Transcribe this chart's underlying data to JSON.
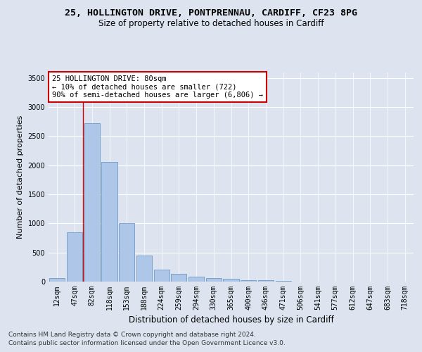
{
  "title_line1": "25, HOLLINGTON DRIVE, PONTPRENNAU, CARDIFF, CF23 8PG",
  "title_line2": "Size of property relative to detached houses in Cardiff",
  "xlabel": "Distribution of detached houses by size in Cardiff",
  "ylabel": "Number of detached properties",
  "categories": [
    "12sqm",
    "47sqm",
    "82sqm",
    "118sqm",
    "153sqm",
    "188sqm",
    "224sqm",
    "259sqm",
    "294sqm",
    "330sqm",
    "365sqm",
    "400sqm",
    "436sqm",
    "471sqm",
    "506sqm",
    "541sqm",
    "577sqm",
    "612sqm",
    "647sqm",
    "683sqm",
    "718sqm"
  ],
  "values": [
    60,
    850,
    2720,
    2060,
    1000,
    450,
    210,
    135,
    80,
    60,
    45,
    30,
    20,
    10,
    5,
    3,
    2,
    1,
    1,
    0,
    0
  ],
  "bar_color": "#aec6e8",
  "bar_edge_color": "#5a8fc0",
  "annotation_text": "25 HOLLINGTON DRIVE: 80sqm\n← 10% of detached houses are smaller (722)\n90% of semi-detached houses are larger (6,806) →",
  "annotation_box_color": "#ffffff",
  "annotation_box_edge": "#cc0000",
  "ref_line_color": "#cc0000",
  "ylim": [
    0,
    3600
  ],
  "yticks": [
    0,
    500,
    1000,
    1500,
    2000,
    2500,
    3000,
    3500
  ],
  "footer_line1": "Contains HM Land Registry data © Crown copyright and database right 2024.",
  "footer_line2": "Contains public sector information licensed under the Open Government Licence v3.0.",
  "background_color": "#dde4f0",
  "plot_bg_color": "#dde4f0",
  "grid_color": "#ffffff",
  "title_fontsize": 9.5,
  "subtitle_fontsize": 8.5,
  "axis_label_fontsize": 8,
  "tick_fontsize": 7,
  "footer_fontsize": 6.5,
  "annotation_fontsize": 7.5
}
